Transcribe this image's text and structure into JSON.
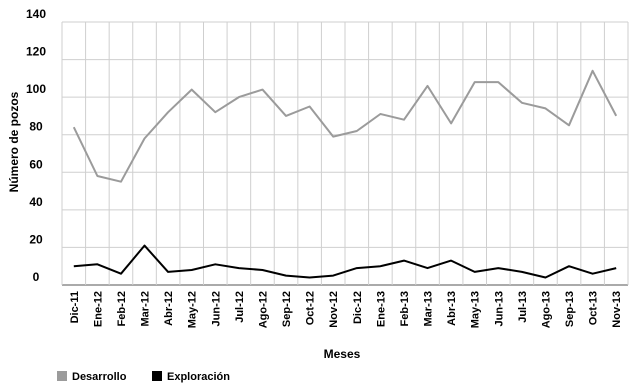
{
  "chart_data": {
    "type": "line",
    "title": "",
    "xlabel": "Meses",
    "ylabel": "Número de pozos",
    "ylim": [
      0,
      140
    ],
    "yticks": [
      0,
      20,
      40,
      60,
      80,
      100,
      120,
      140
    ],
    "grid": true,
    "legend_position": "bottom-left",
    "categories": [
      "Dic-11",
      "Ene-12",
      "Feb-12",
      "Mar-12",
      "Abr-12",
      "May-12",
      "Jun-12",
      "Jul-12",
      "Ago-12",
      "Sep-12",
      "Oct-12",
      "Nov-12",
      "Dic-12",
      "Ene-13",
      "Feb-13",
      "Mar-13",
      "Abr-13",
      "May-13",
      "Jun-13",
      "Jul-13",
      "Ago-13",
      "Sep-13",
      "Oct-13",
      "Nov-13"
    ],
    "series": [
      {
        "name": "Desarrollo",
        "color": "#9b9b9b",
        "values": [
          84,
          58,
          55,
          78,
          92,
          104,
          92,
          100,
          104,
          90,
          95,
          79,
          82,
          91,
          88,
          106,
          86,
          108,
          108,
          97,
          94,
          85,
          114,
          90
        ]
      },
      {
        "name": "Exploración",
        "color": "#000000",
        "values": [
          10,
          11,
          6,
          21,
          7,
          8,
          11,
          9,
          8,
          5,
          4,
          5,
          9,
          10,
          13,
          9,
          13,
          7,
          9,
          7,
          4,
          10,
          6,
          9
        ]
      }
    ]
  }
}
